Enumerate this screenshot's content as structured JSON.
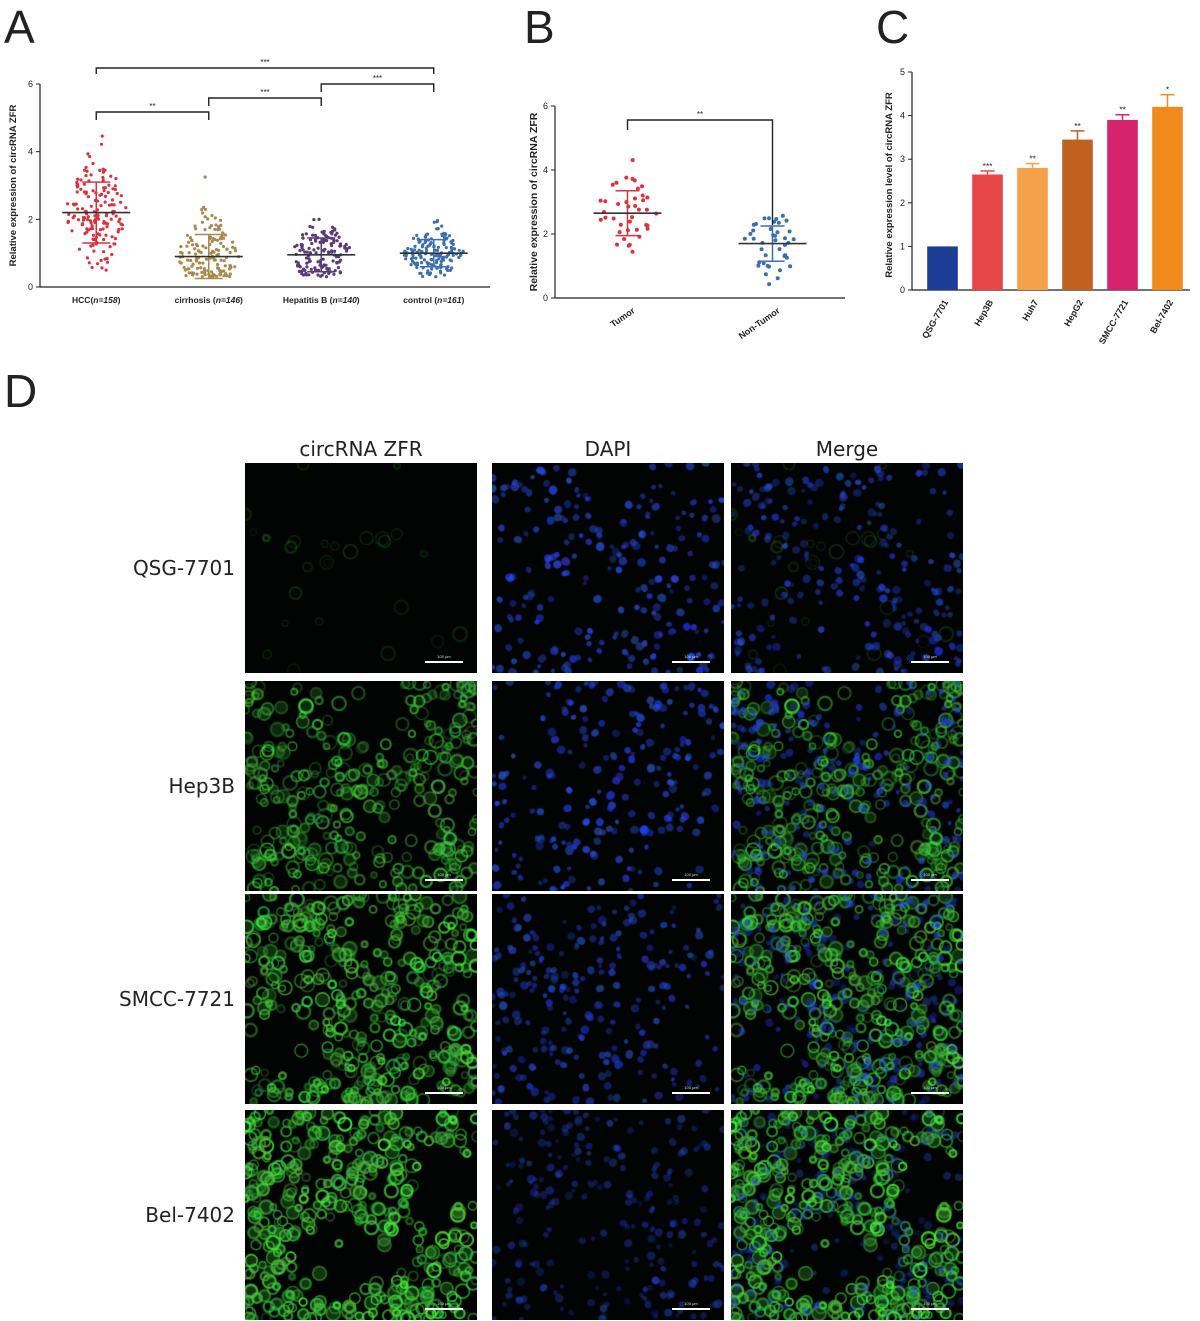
{
  "panels": {
    "a": "A",
    "b": "B",
    "c": "C",
    "d": "D"
  },
  "chart_data": [
    {
      "type": "scatter",
      "panel": "A",
      "ylabel": "Relative expression of circRNA ZFR",
      "ylim": [
        0,
        6
      ],
      "yticks": [
        "0",
        "2",
        "4",
        "6"
      ],
      "groups": [
        {
          "label": "HCC(n=158)",
          "label_plain": "HCC(",
          "label_italic": "n=158",
          "label_tail": ")",
          "n": 158,
          "mean": 2.2,
          "sd": 0.9,
          "color": "#d9333f"
        },
        {
          "label": "cirrhosis (n=146)",
          "label_plain": "cirrhosis (",
          "label_italic": "n=146",
          "label_tail": ")",
          "n": 146,
          "mean": 0.9,
          "sd": 0.65,
          "color": "#a8894e"
        },
        {
          "label": "Hepatitis B (n=140)",
          "label_plain": "Hepatitis B (",
          "label_italic": "n=140",
          "label_tail": ")",
          "n": 140,
          "mean": 0.95,
          "sd": 0.5,
          "color": "#5a3a7a"
        },
        {
          "label": "control (n=161)",
          "label_plain": "control (",
          "label_italic": "n=161",
          "label_tail": ")",
          "n": 161,
          "mean": 1.0,
          "sd": 0.4,
          "color": "#3a6fb0"
        }
      ],
      "significance": [
        {
          "from": 0,
          "to": 3,
          "label": "***"
        },
        {
          "from": 0,
          "to": 1,
          "label": "**"
        },
        {
          "from": 1,
          "to": 2,
          "label": "***"
        },
        {
          "from": 2,
          "to": 3,
          "label": "***"
        }
      ]
    },
    {
      "type": "scatter",
      "panel": "B",
      "ylabel": "Relative expression of circRNA ZFR",
      "ylim": [
        0,
        6
      ],
      "yticks": [
        "0",
        "2",
        "4",
        "6"
      ],
      "groups": [
        {
          "label": "Tumor",
          "n": 40,
          "mean": 2.65,
          "sd": 0.7,
          "color": "#d9333f"
        },
        {
          "label": "Non-Tumor",
          "n": 40,
          "mean": 1.7,
          "sd": 0.55,
          "color": "#3a6fb0"
        }
      ],
      "significance": [
        {
          "from": 0,
          "to": 1,
          "label": "**"
        }
      ]
    },
    {
      "type": "bar",
      "panel": "C",
      "ylabel": "Relative expression level of circRNA ZFR",
      "ylim": [
        0,
        5
      ],
      "yticks": [
        "0",
        "1",
        "2",
        "3",
        "4",
        "5"
      ],
      "categories": [
        "QSG-7701",
        "Hep3B",
        "Huh7",
        "HepG2",
        "SMCC-7721",
        "Bel-7402"
      ],
      "values": [
        1.0,
        2.65,
        2.8,
        3.45,
        3.9,
        4.2
      ],
      "errors": [
        0,
        0.08,
        0.1,
        0.2,
        0.12,
        0.28
      ],
      "sig": [
        "",
        "***",
        "**",
        "**",
        "**",
        "*"
      ],
      "colors": [
        "#1d3c96",
        "#e8474a",
        "#f5a04a",
        "#bf621f",
        "#d5236c",
        "#f08a1c"
      ]
    }
  ],
  "micrographs": {
    "columns": [
      "circRNA ZFR",
      "DAPI",
      "Merge"
    ],
    "rows": [
      "QSG-7701",
      "Hep3B",
      "SMCC-7721",
      "Bel-7402"
    ],
    "green_intensity": [
      0.08,
      0.75,
      0.9,
      1.0
    ],
    "dapi_intensity": [
      0.85,
      0.85,
      0.7,
      0.5
    ],
    "scale_label": "100 μm"
  }
}
